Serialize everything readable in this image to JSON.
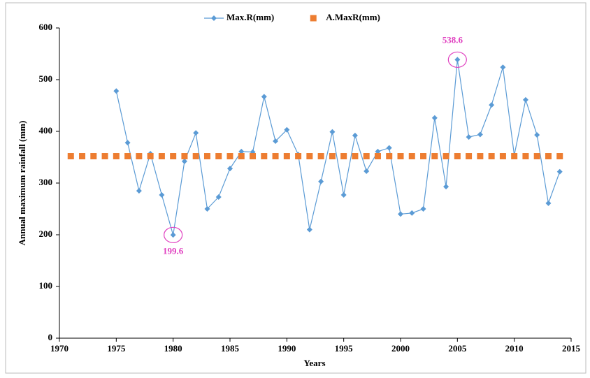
{
  "chart_data": {
    "type": "line",
    "xlabel": "Years",
    "ylabel": "Annual maximum rainfall (mm)",
    "xlim": [
      1970,
      2015
    ],
    "xticks": [
      1970,
      1975,
      1980,
      1985,
      1990,
      1995,
      2000,
      2005,
      2010,
      2015
    ],
    "ylim": [
      0,
      600
    ],
    "yticks": [
      0,
      100,
      200,
      300,
      400,
      500,
      600
    ],
    "legend": "top",
    "series": [
      {
        "name": "Max.R(mm)",
        "color": "#5b9bd5",
        "style": "line-diamond",
        "x": [
          1975,
          1976,
          1977,
          1978,
          1979,
          1980,
          1981,
          1982,
          1983,
          1984,
          1985,
          1986,
          1987,
          1988,
          1989,
          1990,
          1991,
          1992,
          1993,
          1994,
          1995,
          1996,
          1997,
          1998,
          1999,
          2000,
          2001,
          2002,
          2003,
          2004,
          2005,
          2006,
          2007,
          2008,
          2009,
          2010,
          2011,
          2012,
          2013,
          2014
        ],
        "values": [
          478,
          378,
          285,
          357,
          277,
          199.6,
          342,
          397,
          250,
          273,
          328,
          361,
          360,
          467,
          381,
          403,
          355,
          210,
          303,
          399,
          277,
          392,
          323,
          361,
          368,
          240,
          242,
          250,
          426,
          293,
          538.6,
          389,
          394,
          451,
          524,
          354,
          461,
          393,
          261,
          322
        ]
      },
      {
        "name": "A.MaxR(mm)",
        "color": "#ed7d31",
        "style": "square",
        "x": [
          1971,
          1972,
          1973,
          1974,
          1975,
          1976,
          1977,
          1978,
          1979,
          1980,
          1981,
          1982,
          1983,
          1984,
          1985,
          1986,
          1987,
          1988,
          1989,
          1990,
          1991,
          1992,
          1993,
          1994,
          1995,
          1996,
          1997,
          1998,
          1999,
          2000,
          2001,
          2002,
          2003,
          2004,
          2005,
          2006,
          2007,
          2008,
          2009,
          2010,
          2011,
          2012,
          2013,
          2014
        ],
        "values": [
          352,
          352,
          352,
          352,
          352,
          352,
          352,
          352,
          352,
          352,
          352,
          352,
          352,
          352,
          352,
          352,
          352,
          352,
          352,
          352,
          352,
          352,
          352,
          352,
          352,
          352,
          352,
          352,
          352,
          352,
          352,
          352,
          352,
          352,
          352,
          352,
          352,
          352,
          352,
          352,
          352,
          352,
          352,
          352
        ]
      }
    ],
    "annotations": [
      {
        "text": "199.6",
        "x": 1980,
        "y": 199.6,
        "color": "#e040c0",
        "position": "below"
      },
      {
        "text": "538.6",
        "x": 2005,
        "y": 538.6,
        "color": "#e040c0",
        "position": "above"
      }
    ]
  }
}
